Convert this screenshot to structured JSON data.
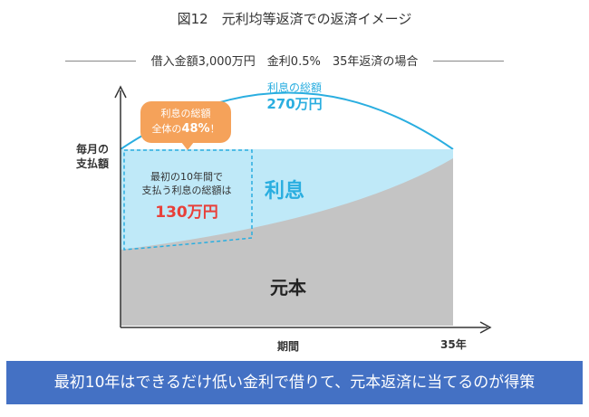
{
  "title": "図12　元利均等返済での返済イメージ",
  "subtitle": "借入金額3,000万円　金利0.5%　35年返済の場合",
  "y_axis_label": [
    "毎月の",
    "支払額"
  ],
  "x_axis_label": "期間",
  "x_axis_end_label": "35年",
  "total_interest": {
    "label": "利息の総額",
    "value": "270万円"
  },
  "callout": {
    "line1": "利息の総額",
    "line2_prefix": "全体の",
    "line2_pct": "48%",
    "line2_suffix": "！"
  },
  "first_10_years": {
    "line1": "最初の10年間で",
    "line2": "支払う利息の総額は",
    "value": "130万円"
  },
  "interest_label": "利息",
  "principal_label": "元本",
  "banner": "最初10年はできるだけ低い金利で借りて、元本返済に当てるのが得策",
  "colors": {
    "interest_area": "#bfe9f8",
    "principal_area": "#c4c4c4",
    "accent_blue": "#2aaee0",
    "callout_orange": "#f5a25a",
    "value_red": "#e8403a",
    "banner_blue": "#4471c4"
  }
}
